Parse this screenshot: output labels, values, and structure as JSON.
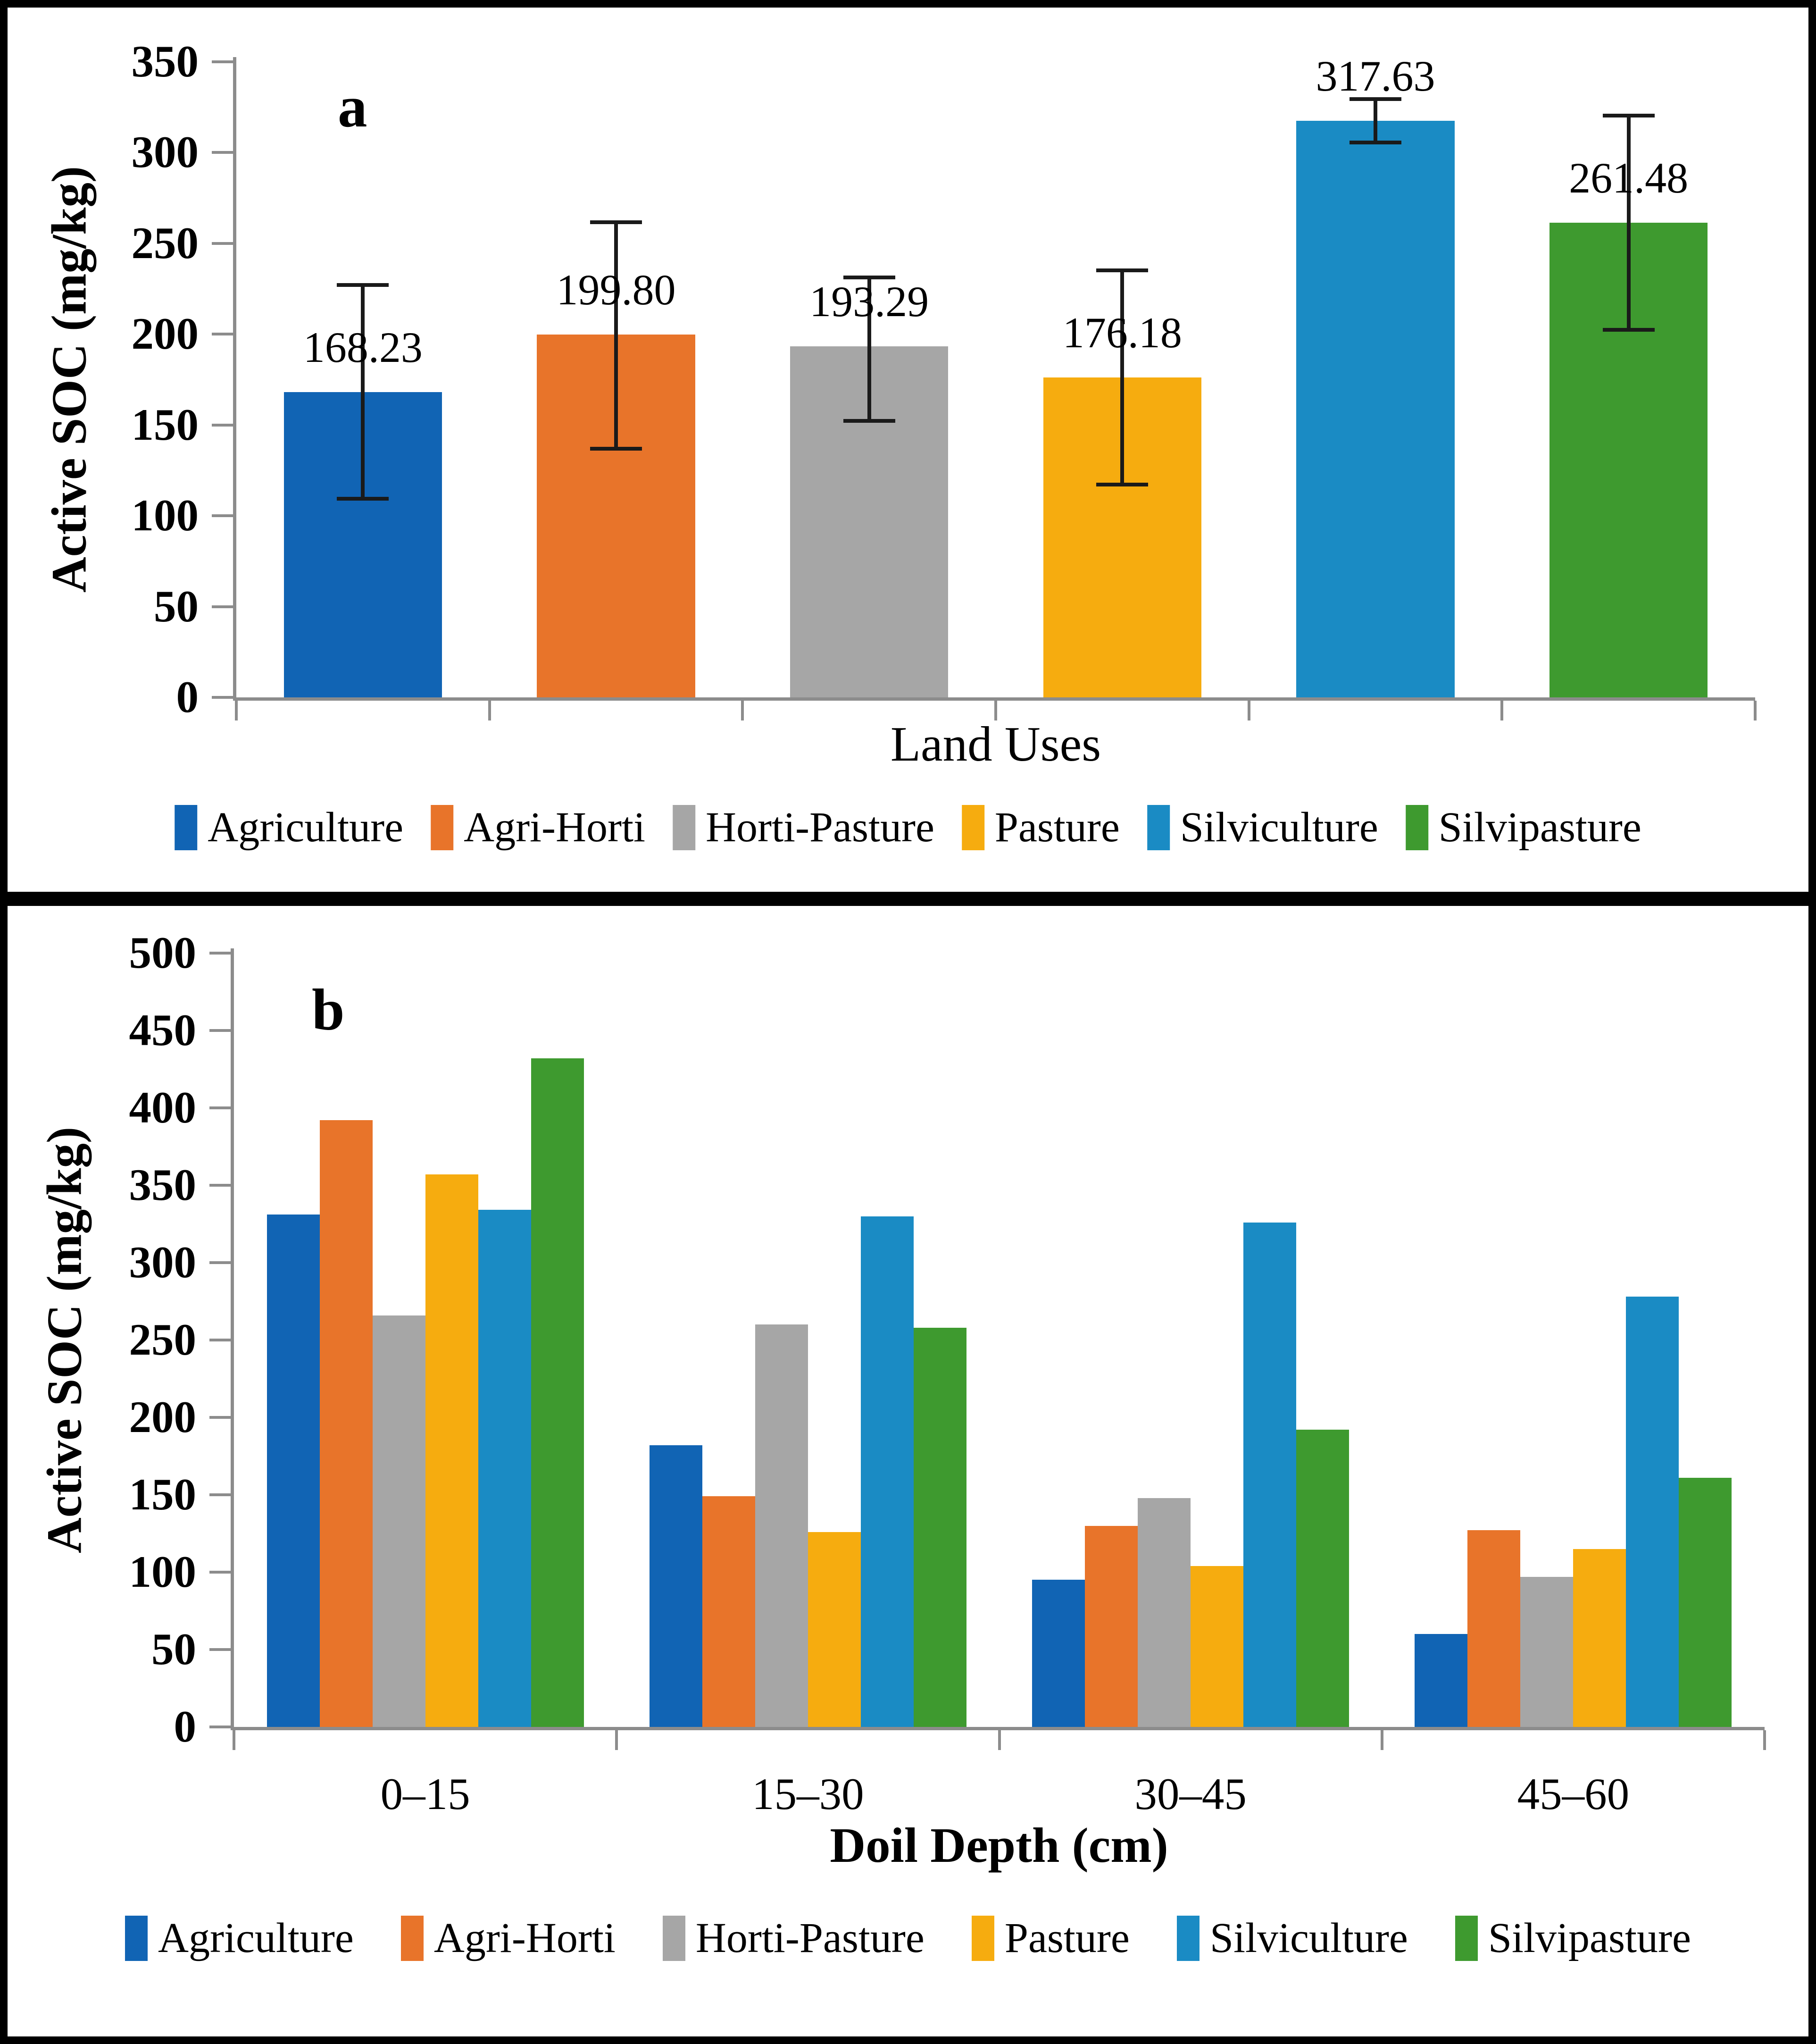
{
  "figure": {
    "panel_a_letter": "a",
    "panel_b_letter": "b"
  },
  "colors": {
    "agriculture": "#1164B4",
    "agri_horti": "#E8742A",
    "horti_pasture": "#A6A6A6",
    "pasture": "#F6AC0F",
    "silviculture": "#1A8BC4",
    "silvipasture": "#3E9A2F",
    "axis": "#8C8C8C",
    "error_bar": "#1A1A1A"
  },
  "chart_data": [
    {
      "type": "bar",
      "panel_label": "a",
      "categories": [
        "Agriculture",
        "Agri-Horti",
        "Horti-Pasture",
        "Pasture",
        "Silviculture",
        "Silvipasture"
      ],
      "values": [
        168.23,
        199.8,
        193.29,
        176.18,
        317.63,
        261.48
      ],
      "value_labels": [
        "168.23",
        "199.80",
        "193.29",
        "176.18",
        "317.63",
        "261.48"
      ],
      "error_plus": [
        60,
        63,
        39,
        60,
        13,
        60
      ],
      "error_minus": [
        60,
        64,
        42,
        60,
        13,
        60
      ],
      "colors": [
        "#1164B4",
        "#E8742A",
        "#A6A6A6",
        "#F6AC0F",
        "#1A8BC4",
        "#3E9A2F"
      ],
      "xlabel": "Land Uses",
      "ylabel": "Active SOC (mg/kg)",
      "ylim": [
        0,
        350
      ],
      "ytick_step": 50,
      "grid": false,
      "legend_position": "bottom",
      "legend": [
        "Agriculture",
        "Agri-Horti",
        "Horti-Pasture",
        "Pasture",
        "Silviculture",
        "Silvipasture"
      ]
    },
    {
      "type": "bar",
      "panel_label": "b",
      "categories": [
        "0–15",
        "15–30",
        "30–45",
        "45–60"
      ],
      "series": [
        {
          "name": "Agriculture",
          "color": "#1164B4",
          "values": [
            331,
            182,
            95,
            60
          ]
        },
        {
          "name": "Agri-Horti",
          "color": "#E8742A",
          "values": [
            392,
            149,
            130,
            127
          ]
        },
        {
          "name": "Horti-Pasture",
          "color": "#A6A6A6",
          "values": [
            266,
            260,
            148,
            97
          ]
        },
        {
          "name": "Pasture",
          "color": "#F6AC0F",
          "values": [
            357,
            126,
            104,
            115
          ]
        },
        {
          "name": "Silviculture",
          "color": "#1A8BC4",
          "values": [
            334,
            330,
            326,
            278
          ]
        },
        {
          "name": "Silvipasture",
          "color": "#3E9A2F",
          "values": [
            432,
            258,
            192,
            161
          ]
        }
      ],
      "xlabel": "Doil Depth (cm)",
      "ylabel": "Active SOC (mg/kg)",
      "ylim": [
        0,
        500
      ],
      "ytick_step": 50,
      "grid": false,
      "legend_position": "bottom",
      "legend": [
        "Agriculture",
        "Agri-Horti",
        "Horti-Pasture",
        "Pasture",
        "Silviculture",
        "Silvipasture"
      ]
    }
  ]
}
